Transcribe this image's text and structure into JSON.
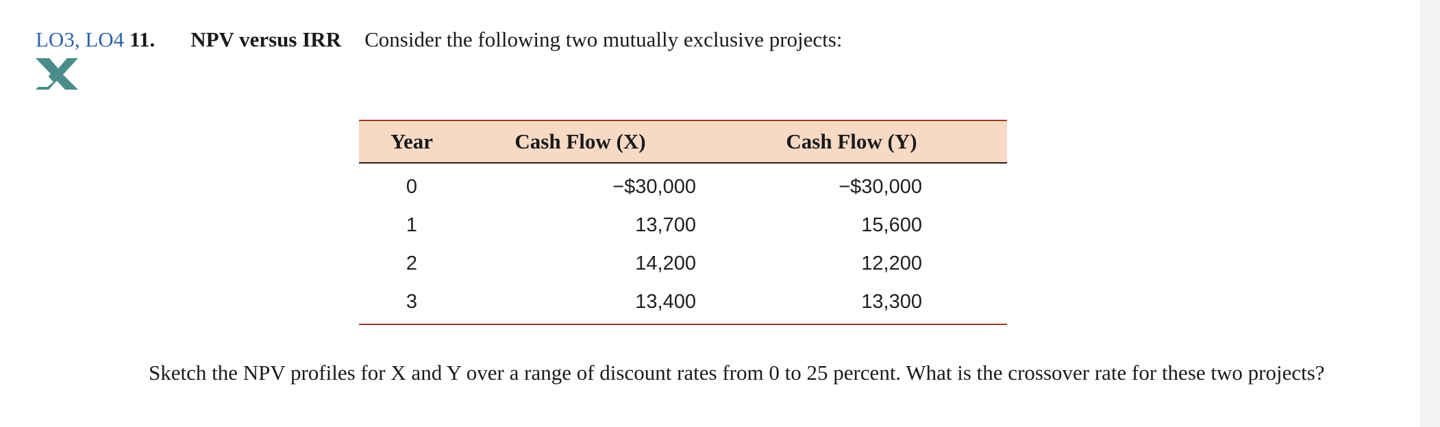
{
  "header": {
    "lo_tags": "LO3, LO4",
    "number": "11.",
    "title": "NPV versus IRR",
    "intro": "Consider the following two mutually exclusive projects:"
  },
  "badge": {
    "icon": "excel-x-icon",
    "color": "#4a8c8a"
  },
  "table": {
    "headers": [
      "Year",
      "Cash Flow (X)",
      "Cash Flow (Y)"
    ],
    "rows": [
      [
        "0",
        "−$30,000",
        "−$30,000"
      ],
      [
        "1",
        "13,700",
        "15,600"
      ],
      [
        "2",
        "14,200",
        "12,200"
      ],
      [
        "3",
        "13,400",
        "13,300"
      ]
    ],
    "header_bg": "#f7d9c4",
    "rule_color": "#9b3a1e"
  },
  "question": "Sketch the NPV profiles for X and Y over a range of discount rates from 0 to 25 percent. What is the crossover rate for these two projects?"
}
